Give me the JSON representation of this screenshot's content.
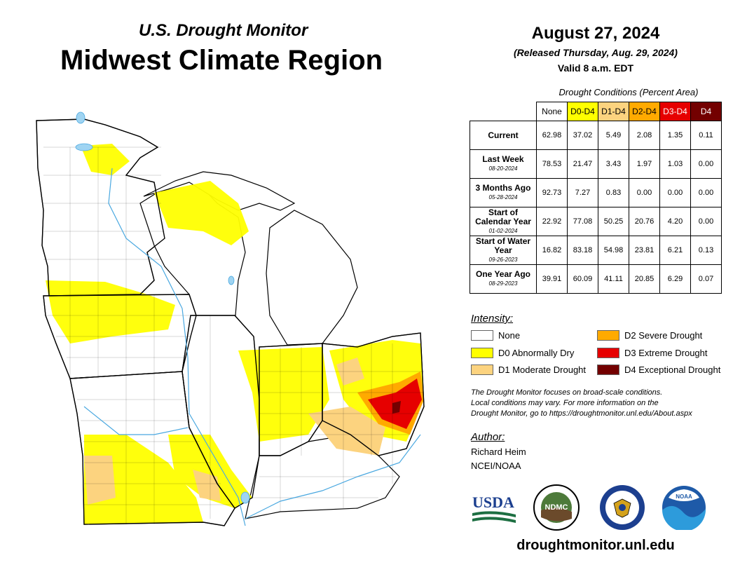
{
  "header": {
    "subtitle": "U.S. Drought Monitor",
    "title": "Midwest Climate Region",
    "date": "August 27, 2024",
    "released": "(Released Thursday, Aug. 29, 2024)",
    "valid": "Valid 8 a.m. EDT"
  },
  "table": {
    "caption": "Drought Conditions (Percent Area)",
    "columns": [
      "None",
      "D0-D4",
      "D1-D4",
      "D2-D4",
      "D3-D4",
      "D4"
    ],
    "rows": [
      {
        "label": "Current",
        "date": "",
        "values": [
          "62.98",
          "37.02",
          "5.49",
          "2.08",
          "1.35",
          "0.11"
        ]
      },
      {
        "label": "Last Week",
        "date": "08-20-2024",
        "values": [
          "78.53",
          "21.47",
          "3.43",
          "1.97",
          "1.03",
          "0.00"
        ]
      },
      {
        "label": "3 Months Ago",
        "date": "05-28-2024",
        "values": [
          "92.73",
          "7.27",
          "0.83",
          "0.00",
          "0.00",
          "0.00"
        ]
      },
      {
        "label": "Start of Calendar Year",
        "date": "01-02-2024",
        "values": [
          "22.92",
          "77.08",
          "50.25",
          "20.76",
          "4.20",
          "0.00"
        ]
      },
      {
        "label": "Start of Water Year",
        "date": "09-26-2023",
        "values": [
          "16.82",
          "83.18",
          "54.98",
          "23.81",
          "6.21",
          "0.13"
        ]
      },
      {
        "label": "One Year Ago",
        "date": "08-29-2023",
        "values": [
          "39.91",
          "60.09",
          "41.11",
          "20.85",
          "6.29",
          "0.07"
        ]
      }
    ]
  },
  "legend": {
    "title": "Intensity:",
    "items": [
      {
        "label": "None",
        "color": "#ffffff"
      },
      {
        "label": "D0 Abnormally Dry",
        "color": "#ffff00"
      },
      {
        "label": "D1 Moderate Drought",
        "color": "#fcd37f"
      },
      {
        "label": "D2 Severe Drought",
        "color": "#ffaa00"
      },
      {
        "label": "D3 Extreme Drought",
        "color": "#e60000"
      },
      {
        "label": "D4 Exceptional Drought",
        "color": "#730000"
      }
    ]
  },
  "note": {
    "line1": "The Drought Monitor focuses on broad-scale conditions.",
    "line2": "Local conditions may vary. For more information on the",
    "line3": "Drought Monitor, go to https://droughtmonitor.unl.edu/About.aspx"
  },
  "author": {
    "title": "Author:",
    "name": "Richard Heim",
    "org": "NCEI/NOAA"
  },
  "logos": {
    "usda": "USDA",
    "ndmc": "NDMC",
    "noaa": "NOAA"
  },
  "website": "droughtmonitor.unl.edu",
  "colors": {
    "none": "#ffffff",
    "d0": "#ffff00",
    "d1": "#fcd37f",
    "d2": "#ffaa00",
    "d3": "#e60000",
    "d4": "#730000",
    "water": "#9fd4f2"
  }
}
